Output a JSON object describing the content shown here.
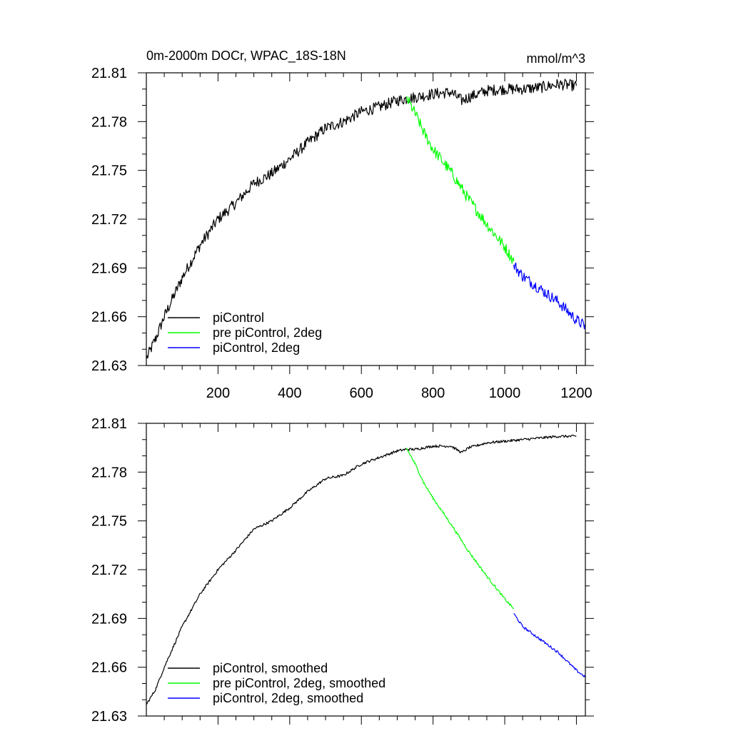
{
  "chart_data": [
    {
      "type": "line",
      "panel": "top",
      "title_left": "0m-2000m DOCr, WPAC_18S-18N",
      "title_right": "mmol/m^3",
      "xlabel": "",
      "ylabel": "",
      "xlim": [
        0,
        1225
      ],
      "ylim": [
        21.63,
        21.81
      ],
      "xticks": [
        200,
        400,
        600,
        800,
        1000,
        1200
      ],
      "xtick_labels": [
        "200",
        "400",
        "600",
        "800",
        "1000",
        "1200"
      ],
      "yticks": [
        21.63,
        21.66,
        21.69,
        21.72,
        21.75,
        21.78,
        21.81
      ],
      "ytick_labels": [
        "21.63",
        "21.66",
        "21.69",
        "21.72",
        "21.75",
        "21.78",
        "21.81"
      ],
      "legend_position": "bottom-left",
      "series": [
        {
          "name": "piControl",
          "color": "#000000",
          "noise": 0.0035,
          "points": [
            [
              0,
              21.634
            ],
            [
              25,
              21.646
            ],
            [
              50,
              21.66
            ],
            [
              100,
              21.684
            ],
            [
              150,
              21.704
            ],
            [
              200,
              21.72
            ],
            [
              250,
              21.73
            ],
            [
              300,
              21.742
            ],
            [
              350,
              21.748
            ],
            [
              400,
              21.757
            ],
            [
              450,
              21.767
            ],
            [
              500,
              21.776
            ],
            [
              550,
              21.78
            ],
            [
              600,
              21.786
            ],
            [
              650,
              21.789
            ],
            [
              700,
              21.793
            ],
            [
              725,
              21.794
            ],
            [
              750,
              21.795
            ],
            [
              800,
              21.797
            ],
            [
              850,
              21.798
            ],
            [
              880,
              21.793
            ],
            [
              900,
              21.795
            ],
            [
              950,
              21.799
            ],
            [
              1000,
              21.8
            ],
            [
              1050,
              21.8
            ],
            [
              1100,
              21.801
            ],
            [
              1150,
              21.803
            ],
            [
              1200,
              21.802
            ]
          ]
        },
        {
          "name": "pre piControl, 2deg",
          "color": "#00ff00",
          "noise": 0.0035,
          "points": [
            [
              725,
              21.795
            ],
            [
              750,
              21.785
            ],
            [
              775,
              21.773
            ],
            [
              800,
              21.763
            ],
            [
              850,
              21.749
            ],
            [
              900,
              21.732
            ],
            [
              950,
              21.717
            ],
            [
              1000,
              21.703
            ],
            [
              1025,
              21.694
            ]
          ]
        },
        {
          "name": "piControl, 2deg",
          "color": "#0000ff",
          "noise": 0.0035,
          "points": [
            [
              1025,
              21.692
            ],
            [
              1050,
              21.685
            ],
            [
              1100,
              21.677
            ],
            [
              1150,
              21.669
            ],
            [
              1200,
              21.658
            ],
            [
              1225,
              21.654
            ]
          ]
        }
      ]
    },
    {
      "type": "line",
      "panel": "bottom",
      "xlabel": "",
      "ylabel": "",
      "xlim": [
        0,
        1225
      ],
      "ylim": [
        21.63,
        21.81
      ],
      "xticks": [
        200,
        400,
        600,
        800,
        1000,
        1200
      ],
      "yticks": [
        21.63,
        21.66,
        21.69,
        21.72,
        21.75,
        21.78,
        21.81
      ],
      "ytick_labels": [
        "21.63",
        "21.66",
        "21.69",
        "21.72",
        "21.75",
        "21.78",
        "21.81"
      ],
      "legend_position": "bottom-left",
      "series": [
        {
          "name": "piControl, smoothed",
          "color": "#000000",
          "noise": 0.0008,
          "points": [
            [
              0,
              21.637
            ],
            [
              25,
              21.646
            ],
            [
              50,
              21.66
            ],
            [
              100,
              21.685
            ],
            [
              150,
              21.705
            ],
            [
              200,
              21.72
            ],
            [
              250,
              21.732
            ],
            [
              300,
              21.745
            ],
            [
              350,
              21.75
            ],
            [
              400,
              21.758
            ],
            [
              450,
              21.768
            ],
            [
              500,
              21.776
            ],
            [
              550,
              21.778
            ],
            [
              600,
              21.785
            ],
            [
              650,
              21.789
            ],
            [
              700,
              21.793
            ],
            [
              725,
              21.794
            ],
            [
              750,
              21.794
            ],
            [
              800,
              21.796
            ],
            [
              850,
              21.796
            ],
            [
              880,
              21.792
            ],
            [
              900,
              21.795
            ],
            [
              950,
              21.798
            ],
            [
              1000,
              21.799
            ],
            [
              1050,
              21.8
            ],
            [
              1100,
              21.801
            ],
            [
              1150,
              21.802
            ],
            [
              1200,
              21.802
            ]
          ]
        },
        {
          "name": "pre piControl, 2deg, smoothed",
          "color": "#00ff00",
          "noise": 0.0008,
          "points": [
            [
              725,
              21.795
            ],
            [
              750,
              21.785
            ],
            [
              775,
              21.773
            ],
            [
              800,
              21.764
            ],
            [
              850,
              21.748
            ],
            [
              900,
              21.731
            ],
            [
              950,
              21.716
            ],
            [
              1000,
              21.702
            ],
            [
              1025,
              21.696
            ]
          ]
        },
        {
          "name": "piControl, 2deg, smoothed",
          "color": "#0000ff",
          "noise": 0.0008,
          "points": [
            [
              1025,
              21.693
            ],
            [
              1050,
              21.685
            ],
            [
              1100,
              21.677
            ],
            [
              1150,
              21.669
            ],
            [
              1200,
              21.658
            ],
            [
              1225,
              21.654
            ]
          ]
        }
      ]
    }
  ]
}
